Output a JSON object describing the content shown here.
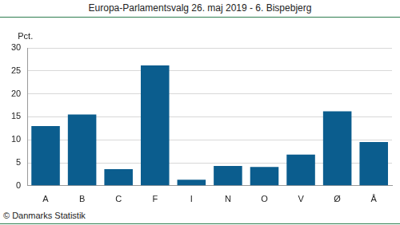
{
  "chart_data": {
    "type": "bar",
    "title": "Europa-Parlamentsvalg 26. maj 2019 - 6. Bispebjerg",
    "ylabel": "Pct.",
    "source": "© Danmarks Statistik",
    "categories": [
      "A",
      "B",
      "C",
      "F",
      "I",
      "N",
      "O",
      "V",
      "Ø",
      "Å"
    ],
    "values": [
      13.0,
      15.5,
      3.6,
      26.2,
      1.3,
      4.3,
      4.1,
      6.8,
      16.2,
      9.5
    ],
    "color": "#0b5d8e",
    "ylim": [
      0,
      30
    ],
    "yticks": [
      0,
      5,
      10,
      15,
      20,
      25,
      30
    ],
    "grid": true
  }
}
